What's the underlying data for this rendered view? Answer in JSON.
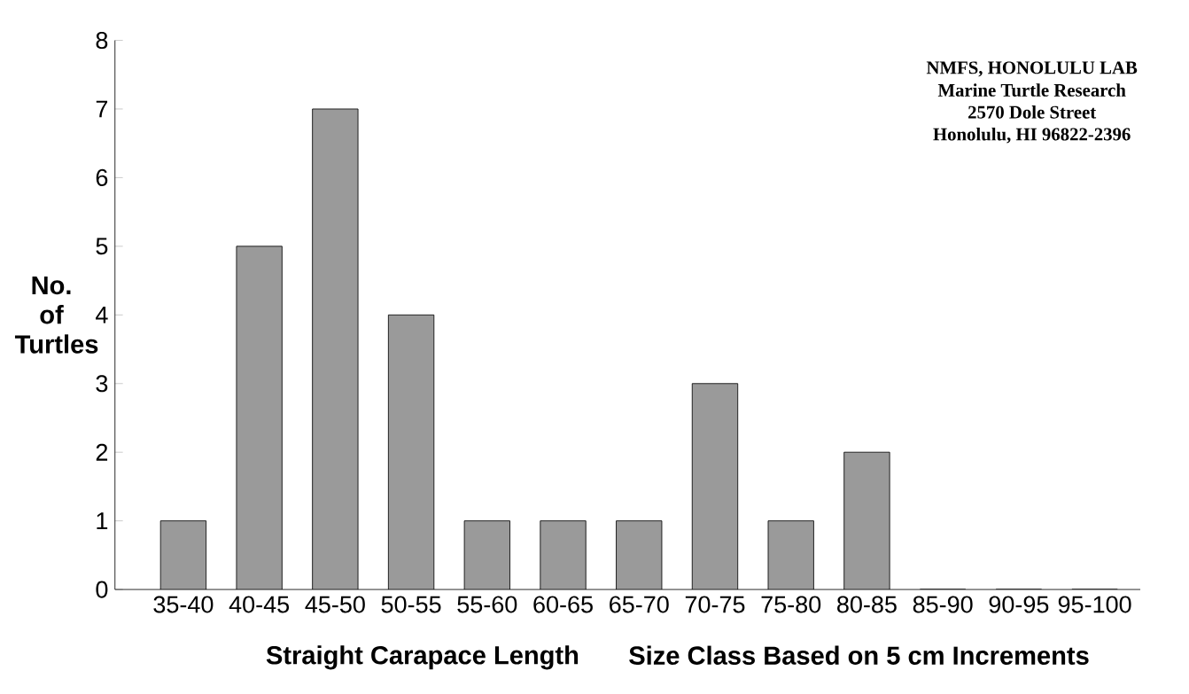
{
  "chart_data": {
    "type": "bar",
    "categories": [
      "35-40",
      "40-45",
      "45-50",
      "50-55",
      "55-60",
      "60-65",
      "65-70",
      "70-75",
      "75-80",
      "80-85",
      "85-90",
      "90-95",
      "95-100"
    ],
    "values": [
      1,
      5,
      7,
      4,
      1,
      1,
      1,
      3,
      1,
      2,
      0,
      0,
      0
    ],
    "color": "#9a9a9a",
    "ylim": [
      0,
      8
    ],
    "yticks": [
      0,
      1,
      2,
      3,
      4,
      5,
      6,
      7,
      8
    ],
    "xlabel": "Straight Carapace Length",
    "ylabel": "No. of Turtles",
    "annotations": [
      "NMFS, HONOLULU LAB",
      "Marine Turtle Research",
      "2570 Dole Street",
      "Honolulu, HI 96822-2396",
      "Size Class Based on 5 cm Increments"
    ],
    "grid": false
  }
}
